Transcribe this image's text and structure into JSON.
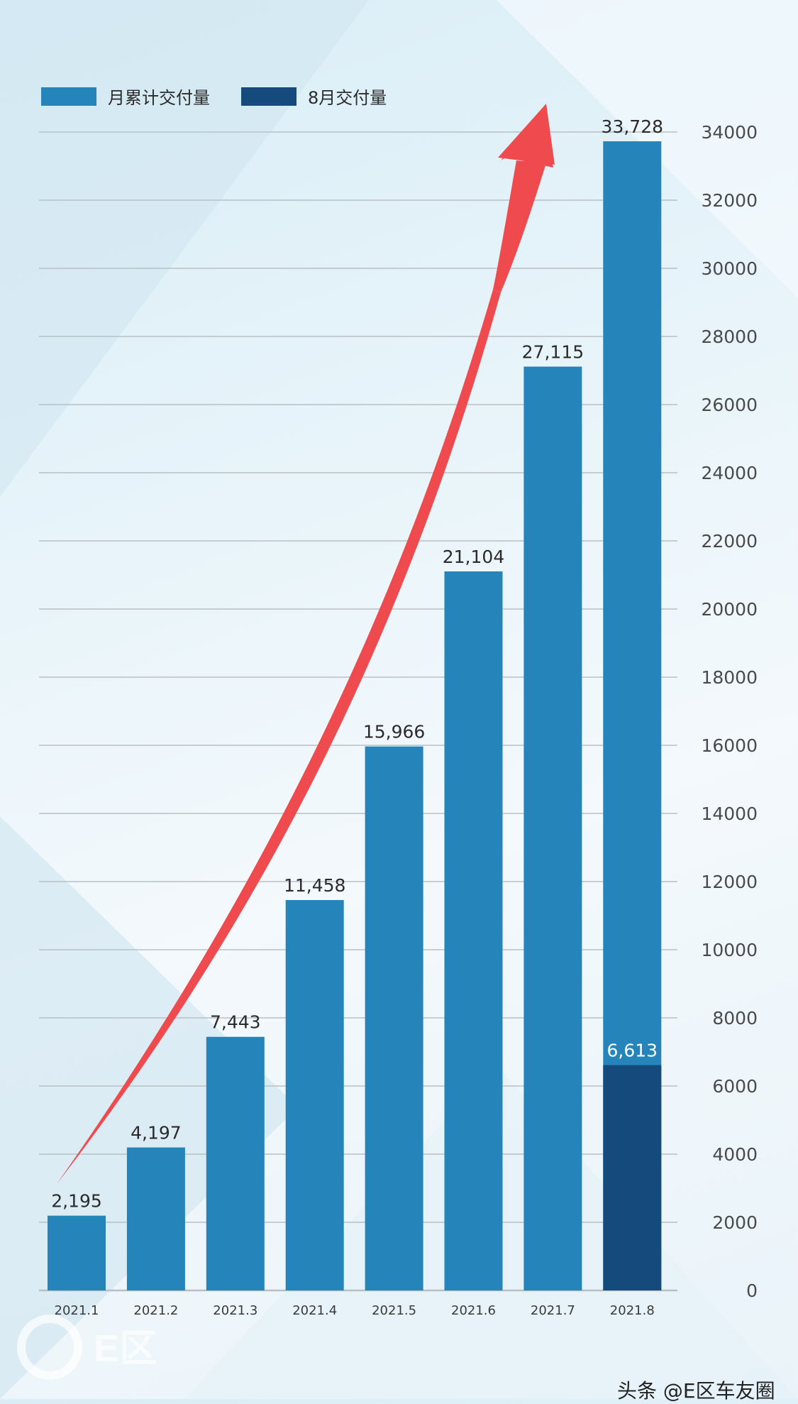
{
  "colors": {
    "cumulative": "#2585bb",
    "monthly": "#144b7c",
    "arrow": "#ef4b4e",
    "grid": "#b9c0c4",
    "text": "#2b2b2b"
  },
  "legend": {
    "cumulative_label": "月累计交付量",
    "monthly_label": "8月交付量"
  },
  "watermark": {
    "logo_text": "E区"
  },
  "credit": "头条 @E区车友圈",
  "chart_data": {
    "type": "bar",
    "title": "",
    "xlabel": "",
    "ylabel": "",
    "categories": [
      "2021.1",
      "2021.2",
      "2021.3",
      "2021.4",
      "2021.5",
      "2021.6",
      "2021.7",
      "2021.8"
    ],
    "series": [
      {
        "name": "月累计交付量",
        "values": [
          2195,
          4197,
          7443,
          11458,
          15966,
          21104,
          27115,
          33728
        ],
        "value_labels": [
          "2,195",
          "4,197",
          "7,443",
          "11,458",
          "15,966",
          "21,104",
          "27,115",
          "33,728"
        ]
      },
      {
        "name": "8月交付量",
        "values": [
          null,
          null,
          null,
          null,
          null,
          null,
          null,
          6613
        ],
        "value_labels": [
          "",
          "",
          "",
          "",
          "",
          "",
          "",
          "6,613"
        ]
      }
    ],
    "ylim": [
      0,
      34000
    ],
    "yticks": [
      0,
      2000,
      4000,
      6000,
      8000,
      10000,
      12000,
      14000,
      16000,
      18000,
      20000,
      22000,
      24000,
      26000,
      28000,
      30000,
      32000,
      34000
    ],
    "y_axis_side": "right",
    "grid": true,
    "legend_position": "top-left",
    "annotation": "trend arrow rising from 2021.1 to 2021.8"
  }
}
